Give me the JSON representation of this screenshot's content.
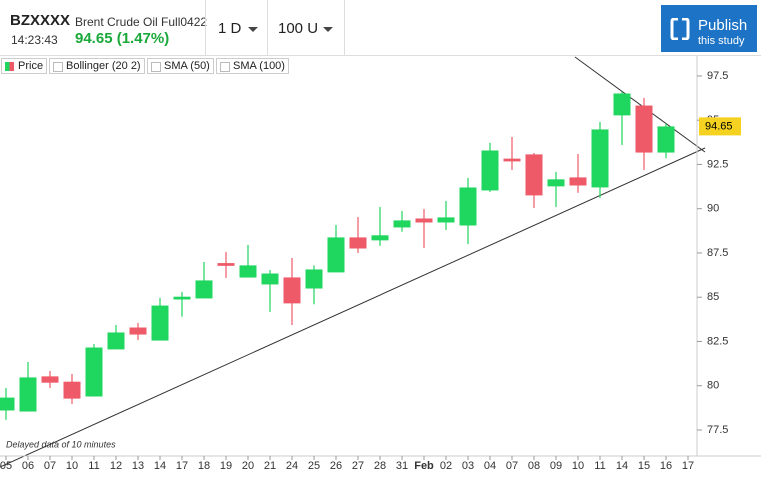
{
  "header": {
    "symbol": "BZXXXX",
    "name": "Brent Crude Oil Full0422",
    "time": "14:23:43",
    "price_change": "94.65 (1.47%)",
    "interval": "1 D",
    "units": "100 U",
    "publish": "Publish",
    "publish_sub": "this study"
  },
  "chart_data": {
    "type": "candlestick",
    "categories": [
      "05",
      "06",
      "07",
      "10",
      "11",
      "12",
      "13",
      "14",
      "17",
      "18",
      "19",
      "20",
      "21",
      "24",
      "25",
      "26",
      "27",
      "28",
      "31",
      "Feb",
      "02",
      "03",
      "04",
      "07",
      "08",
      "09",
      "10",
      "11",
      "14",
      "15",
      "16",
      "17"
    ],
    "series": [
      {
        "name": "Price",
        "up_color": "#1fd65f",
        "down_color": "#ee5a68",
        "open": [
          78.63,
          78.57,
          80.5,
          80.2,
          79.42,
          82.08,
          83.26,
          82.58,
          84.9,
          84.96,
          86.9,
          86.14,
          85.75,
          86.09,
          85.52,
          86.43,
          88.35,
          88.24,
          88.97,
          89.42,
          89.25,
          89.08,
          91.06,
          92.8,
          93.04,
          91.29,
          91.74,
          91.23,
          95.3,
          95.8,
          93.2,
          null
        ],
        "high": [
          79.87,
          81.34,
          80.83,
          80.66,
          82.36,
          83.43,
          83.55,
          84.96,
          85.3,
          86.99,
          87.56,
          87.95,
          86.54,
          87.22,
          86.8,
          89.08,
          89.53,
          90.1,
          89.87,
          89.98,
          90.44,
          91.74,
          93.72,
          94.05,
          93.15,
          92.08,
          93.09,
          94.9,
          96.6,
          96.26,
          94.8,
          null
        ],
        "low": [
          78.07,
          78.57,
          79.87,
          78.97,
          79.42,
          82.08,
          82.58,
          82.58,
          83.9,
          84.96,
          86.09,
          86.14,
          84.17,
          83.43,
          84.6,
          86.43,
          87.5,
          87.9,
          88.7,
          87.78,
          88.8,
          88.0,
          90.95,
          92.19,
          90.04,
          90.1,
          90.9,
          90.61,
          93.6,
          92.19,
          92.85,
          null
        ],
        "close": [
          79.3,
          80.44,
          80.2,
          79.3,
          82.13,
          82.98,
          82.92,
          84.5,
          85.0,
          85.92,
          86.8,
          86.77,
          86.31,
          84.68,
          86.54,
          88.35,
          87.78,
          88.47,
          89.31,
          89.25,
          89.48,
          91.17,
          93.26,
          92.7,
          90.78,
          91.63,
          91.34,
          94.45,
          96.48,
          93.2,
          94.62,
          null
        ]
      }
    ],
    "indicators": [
      "Bollinger (20 2)",
      "SMA (50)",
      "SMA (100)"
    ],
    "last_price": 94.65,
    "note": "Delayed data of 10 minutes",
    "ylim": [
      76.03,
      98.57
    ],
    "yticks": [
      77.5,
      80,
      82.5,
      85,
      87.5,
      90,
      92.5,
      95,
      97.5
    ]
  }
}
